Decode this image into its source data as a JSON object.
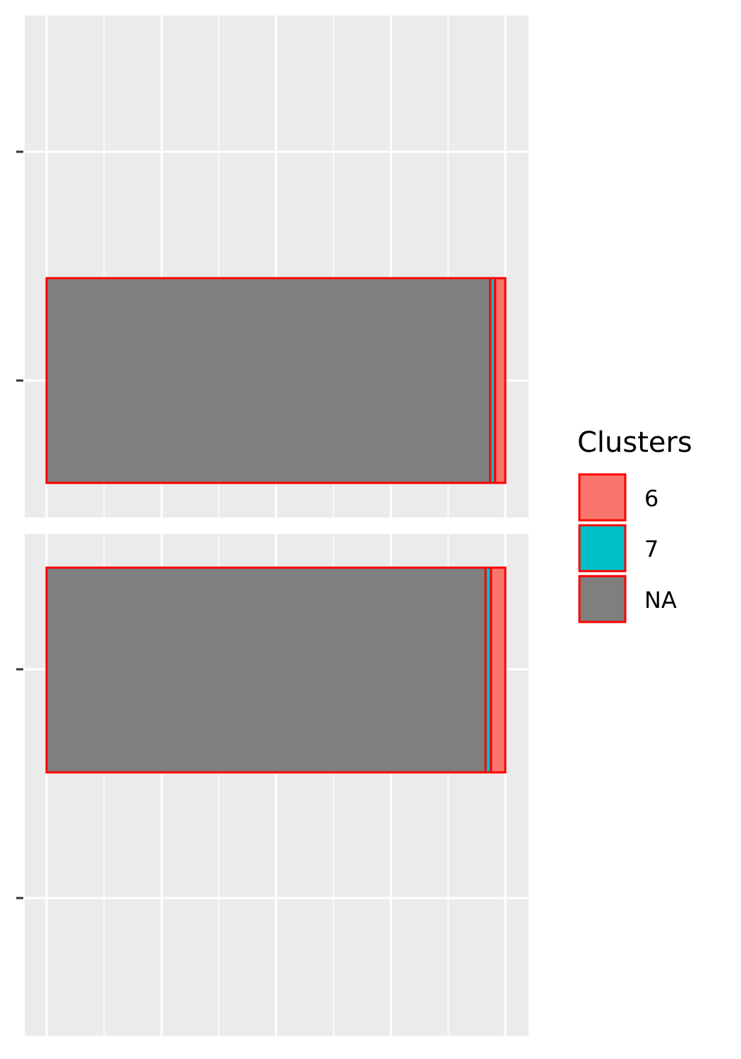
{
  "chart_data": {
    "type": "bar",
    "orientation": "horizontal",
    "stacked": true,
    "facets": 2,
    "grid": true,
    "tick_labels_shown": false,
    "legend": {
      "title": "Clusters",
      "placement": "right",
      "entries": [
        {
          "label": "6",
          "color": "#F8766D"
        },
        {
          "label": "7",
          "color": "#00BFC4"
        },
        {
          "label": "NA",
          "color": "#7F7F7F"
        }
      ]
    },
    "bar_outline_color": "#FF0000",
    "panels": [
      {
        "segments": [
          {
            "cluster": "NA",
            "value": 0.967
          },
          {
            "cluster": "7",
            "value": 0.011
          },
          {
            "cluster": "6",
            "value": 0.022
          }
        ]
      },
      {
        "segments": [
          {
            "cluster": "NA",
            "value": 0.957
          },
          {
            "cluster": "7",
            "value": 0.012
          },
          {
            "cluster": "6",
            "value": 0.031
          }
        ]
      }
    ],
    "xlim": [
      -0.05,
      1.05
    ]
  }
}
